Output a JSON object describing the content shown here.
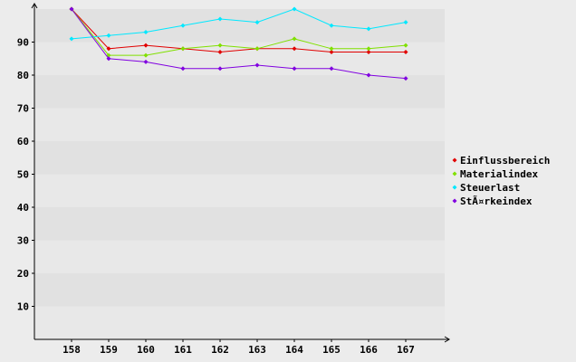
{
  "chart_data": {
    "type": "line",
    "categories": [
      "158",
      "159",
      "160",
      "161",
      "162",
      "163",
      "164",
      "165",
      "166",
      "167"
    ],
    "y_ticks": [
      "10",
      "20",
      "30",
      "40",
      "50",
      "60",
      "70",
      "80",
      "90"
    ],
    "ylim": [
      0,
      100
    ],
    "grid": "alternating horizontal bands",
    "legend_position": "right",
    "series": [
      {
        "name": "Einflussbereich",
        "color": "#e10000",
        "values": [
          100,
          88,
          89,
          88,
          87,
          88,
          88,
          87,
          87,
          87
        ]
      },
      {
        "name": "Materialindex",
        "color": "#80e000",
        "values": [
          100,
          86,
          86,
          88,
          89,
          88,
          91,
          88,
          88,
          89
        ]
      },
      {
        "name": "Steuerlast",
        "color": "#00e8ff",
        "values": [
          91,
          92,
          93,
          95,
          97,
          96,
          100,
          95,
          94,
          96
        ]
      },
      {
        "name": "StÃ¤rkeindex",
        "color": "#8000e0",
        "values": [
          100,
          85,
          84,
          82,
          82,
          83,
          82,
          82,
          80,
          79
        ]
      }
    ]
  }
}
